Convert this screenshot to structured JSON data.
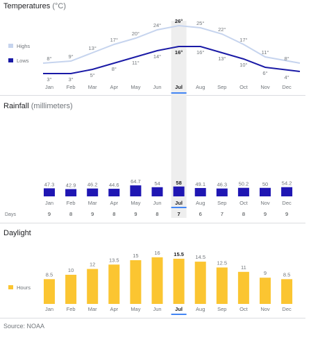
{
  "months": [
    "Jan",
    "Feb",
    "Mar",
    "Apr",
    "May",
    "Jun",
    "Jul",
    "Aug",
    "Sep",
    "Oct",
    "Nov",
    "Dec"
  ],
  "highlight_index": 6,
  "source": "Source: NOAA",
  "colors": {
    "highs": "#c6d4ee",
    "lows": "#1a1aa6",
    "rain": "#1f16b3",
    "daylight": "#fbc531",
    "highlight_band": "#eeeeee",
    "highlight_underline": "#4285f4"
  },
  "chart_data": [
    {
      "type": "line",
      "title": "Temperatures",
      "unit": "(°C)",
      "categories": [
        "Jan",
        "Feb",
        "Mar",
        "Apr",
        "May",
        "Jun",
        "Jul",
        "Aug",
        "Sep",
        "Oct",
        "Nov",
        "Dec"
      ],
      "series": [
        {
          "name": "Highs",
          "values": [
            8,
            9,
            13,
            17,
            20,
            24,
            26,
            25,
            22,
            17,
            11,
            8
          ]
        },
        {
          "name": "Lows",
          "values": [
            3,
            3,
            5,
            8,
            11,
            14,
            16,
            16,
            13,
            10,
            6,
            4
          ]
        }
      ],
      "legend_position": "left",
      "ylim": [
        0,
        28
      ]
    },
    {
      "type": "bar",
      "title": "Rainfall",
      "unit": "(millimeters)",
      "categories": [
        "Jan",
        "Feb",
        "Mar",
        "Apr",
        "May",
        "Jun",
        "Jul",
        "Aug",
        "Sep",
        "Oct",
        "Nov",
        "Dec"
      ],
      "values": [
        47.3,
        42.9,
        46.2,
        44.6,
        64.7,
        54,
        58,
        49.1,
        46.3,
        50.2,
        50,
        54.2
      ],
      "days_label": "Days",
      "days": [
        9,
        8,
        9,
        8,
        9,
        8,
        7,
        6,
        7,
        8,
        9,
        9
      ],
      "ylim": [
        0,
        330
      ]
    },
    {
      "type": "bar",
      "title": "Daylight",
      "unit": "",
      "series_name": "Hours",
      "categories": [
        "Jan",
        "Feb",
        "Mar",
        "Apr",
        "May",
        "Jun",
        "Jul",
        "Aug",
        "Sep",
        "Oct",
        "Nov",
        "Dec"
      ],
      "values": [
        8.5,
        10,
        12,
        13.5,
        15,
        16,
        15.5,
        14.5,
        12.5,
        11,
        9,
        8.5
      ],
      "legend_position": "left",
      "ylim": [
        0,
        17
      ]
    }
  ]
}
